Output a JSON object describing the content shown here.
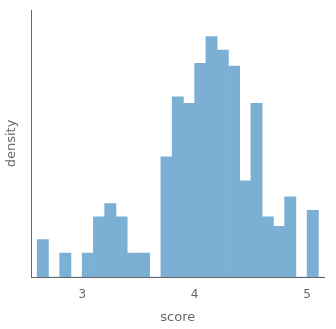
{
  "chart_data": {
    "type": "histogram",
    "xlabel": "score",
    "ylabel": "density",
    "color": "#7bafd4",
    "bins": [
      2.6,
      2.7,
      2.8,
      2.9,
      3.0,
      3.1,
      3.2,
      3.3,
      3.4,
      3.5,
      3.6,
      3.7,
      3.8,
      3.9,
      4.0,
      4.1,
      4.2,
      4.3,
      4.4,
      4.5,
      4.6,
      4.7,
      4.8,
      4.9,
      5.0,
      5.1,
      5.2
    ],
    "values": [
      0.28,
      0.0,
      0.18,
      0.0,
      0.18,
      0.45,
      0.55,
      0.45,
      0.18,
      0.18,
      0.0,
      0.9,
      1.35,
      1.3,
      1.6,
      1.8,
      1.7,
      1.58,
      0.72,
      1.3,
      0.45,
      0.38,
      0.6,
      0.0,
      0.5,
      0.0
    ],
    "xlim": [
      2.55,
      5.15
    ],
    "xticks": [
      3,
      4,
      5
    ],
    "ylim": [
      0,
      2
    ],
    "grid": false,
    "tick_labels": "x"
  }
}
